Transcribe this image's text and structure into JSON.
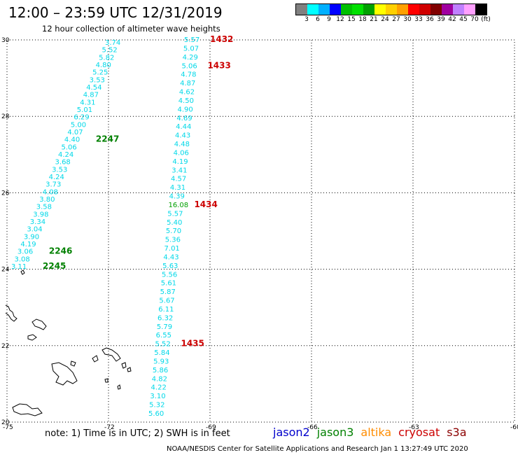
{
  "title": "12:00 – 23:59 UTC 12/31/2019",
  "subtitle": "12 hour collection of altimeter wave heights",
  "legend": {
    "colors": [
      "#808080",
      "#00ffff",
      "#00b0ff",
      "#0000ff",
      "#00c000",
      "#00e000",
      "#00a000",
      "#ffff00",
      "#ffd000",
      "#ffa000",
      "#ff0000",
      "#d00000",
      "#800000",
      "#a000a0",
      "#c080ff",
      "#ffa0ff",
      "#000000"
    ],
    "labels": [
      "3",
      "6",
      "9",
      "12",
      "15",
      "18",
      "21",
      "24",
      "27",
      "30",
      "33",
      "36",
      "39",
      "42",
      "45",
      "70",
      "(ft)"
    ]
  },
  "note": "note:  1) Time is in UTC;  2) SWH is in feet",
  "satellites": [
    {
      "name": "jason2",
      "color": "#0000cc"
    },
    {
      "name": "jason3",
      "color": "#008000"
    },
    {
      "name": "altika",
      "color": "#ff8c00"
    },
    {
      "name": "cryosat",
      "color": "#cc0000"
    },
    {
      "name": "s3a",
      "color": "#8b0000"
    }
  ],
  "credit": "NOAA/NESDIS Center for Satellite Applications and Research    Jan  1 13:27:49 UTC 2020",
  "map": {
    "lon_ticks": [
      "-75",
      "-72",
      "-69",
      "-66",
      "-63",
      "-60"
    ],
    "lat_ticks": [
      "30",
      "28",
      "26",
      "24",
      "22",
      "20"
    ],
    "track_left": {
      "readings": [
        "3.74",
        "5.52",
        "5.82",
        "4.80",
        "5.25",
        "3.53",
        "4.54",
        "4.87",
        "4.31",
        "5.01",
        "6.29",
        "5.00",
        "4.07",
        "4.40",
        "5.06",
        "4.24",
        "3.68",
        "3.53",
        "4.24",
        "3.73",
        "4.08",
        "3.80",
        "3.58",
        "3.98",
        "3.34",
        "3.04",
        "3.90",
        "4.19",
        "3.06",
        "3.08",
        "3.11"
      ],
      "times": [
        {
          "text": "2247",
          "color": "#008000",
          "after_index": 13
        },
        {
          "text": "2246",
          "color": "#008000",
          "after_index": 28
        },
        {
          "text": "2245",
          "color": "#008000",
          "after_index": 30
        }
      ]
    },
    "track_right": {
      "readings": [
        "5.57",
        "5.07",
        "4.29",
        "5.06",
        "4.78",
        "4.87",
        "4.62",
        "4.50",
        "4.90",
        "4.69",
        "4.44",
        "4.43",
        "4.48",
        "4.06",
        "4.19",
        "3.41",
        "4.57",
        "4.31",
        "4.39",
        "16.08",
        "5.57",
        "5.40",
        "5.70",
        "5.36",
        "7.01",
        "4.43",
        "5.63",
        "5.56",
        "5.61",
        "5.87",
        "5.67",
        "6.11",
        "6.32",
        "5.79",
        "6.55",
        "5.52",
        "5.84",
        "5.93",
        "5.86",
        "4.82",
        "4.22",
        "3.10",
        "5.32",
        "5.60"
      ],
      "highlight": {
        "index": 19,
        "color": "#00a000"
      },
      "times": [
        {
          "text": "1432",
          "color": "#cc0000",
          "after_index": 0
        },
        {
          "text": "1433",
          "color": "#cc0000",
          "after_index": 3
        },
        {
          "text": "1434",
          "color": "#cc0000",
          "after_index": 19
        },
        {
          "text": "1435",
          "color": "#cc0000",
          "after_index": 35
        }
      ]
    }
  }
}
